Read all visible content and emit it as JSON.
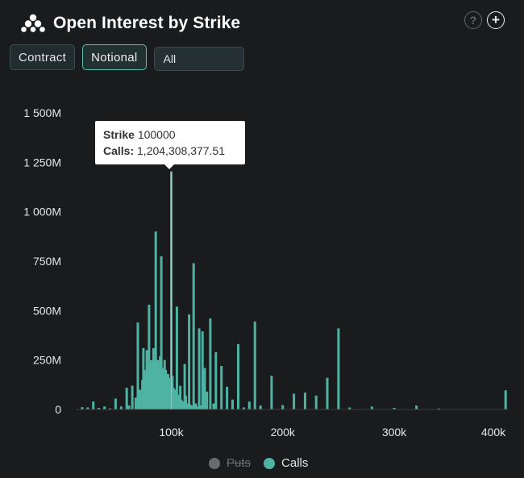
{
  "header": {
    "title": "Open Interest by Strike",
    "help_icon": "?",
    "add_icon": "+"
  },
  "controls": {
    "contract_label": "Contract",
    "notional_label": "Notional",
    "selected_expiry": "All"
  },
  "tooltip": {
    "strike_label": "Strike",
    "strike_value": "100000",
    "calls_label": "Calls:",
    "calls_value": "1,204,308,377.51"
  },
  "legend": {
    "puts": "Puts",
    "calls": "Calls"
  },
  "colors": {
    "background": "#1a1b1d",
    "calls": "#4fb3a3",
    "puts_disabled": "#6b6b6b",
    "accent": "#5cc3b2"
  },
  "chart_data": {
    "type": "bar",
    "x_scale": "linear",
    "xlim": [
      15000,
      402000
    ],
    "ylim": [
      0,
      1500
    ],
    "y_unit": "M",
    "yticks": [
      "0",
      "250M",
      "500M",
      "750M",
      "1 000M",
      "1 250M",
      "1 500M"
    ],
    "xticks": [
      "100k",
      "200k",
      "300k",
      "400k"
    ],
    "xtick_values": [
      100000,
      200000,
      300000,
      400000
    ],
    "highlight_x": 100000,
    "grid": false,
    "legend_position": "bottom-center",
    "series": [
      {
        "name": "Calls",
        "x": [
          20000,
          25000,
          30000,
          35000,
          40000,
          45000,
          50000,
          55000,
          60000,
          62000,
          65000,
          68000,
          70000,
          72000,
          74000,
          75000,
          76000,
          77000,
          78000,
          79000,
          80000,
          81000,
          82000,
          83000,
          84000,
          85000,
          86000,
          87000,
          88000,
          89000,
          90000,
          91000,
          92000,
          93000,
          94000,
          95000,
          96000,
          97000,
          98000,
          99000,
          100000,
          101000,
          102000,
          103000,
          104000,
          105000,
          106000,
          107000,
          108000,
          109000,
          110000,
          111000,
          112000,
          113000,
          114000,
          115000,
          116000,
          117000,
          118000,
          119000,
          120000,
          121000,
          122000,
          123000,
          125000,
          126000,
          128000,
          130000,
          132000,
          135000,
          138000,
          140000,
          145000,
          150000,
          155000,
          160000,
          165000,
          170000,
          175000,
          180000,
          190000,
          200000,
          210000,
          220000,
          230000,
          240000,
          250000,
          260000,
          280000,
          300000,
          320000,
          340000,
          400000
        ],
        "values": [
          12,
          10,
          40,
          8,
          15,
          5,
          55,
          15,
          110,
          20,
          120,
          60,
          440,
          100,
          150,
          310,
          200,
          170,
          300,
          210,
          530,
          190,
          250,
          180,
          310,
          260,
          900,
          200,
          250,
          190,
          270,
          775,
          210,
          160,
          250,
          200,
          150,
          180,
          120,
          160,
          1204,
          170,
          110,
          90,
          100,
          520,
          75,
          60,
          120,
          50,
          40,
          35,
          230,
          70,
          30,
          20,
          480,
          25,
          20,
          15,
          740,
          20,
          30,
          15,
          410,
          20,
          395,
          210,
          90,
          460,
          30,
          290,
          220,
          115,
          50,
          330,
          10,
          40,
          445,
          20,
          170,
          22,
          80,
          85,
          70,
          160,
          410,
          10,
          15,
          8,
          20,
          5,
          97
        ]
      },
      {
        "name": "Puts",
        "hidden": true
      }
    ]
  }
}
